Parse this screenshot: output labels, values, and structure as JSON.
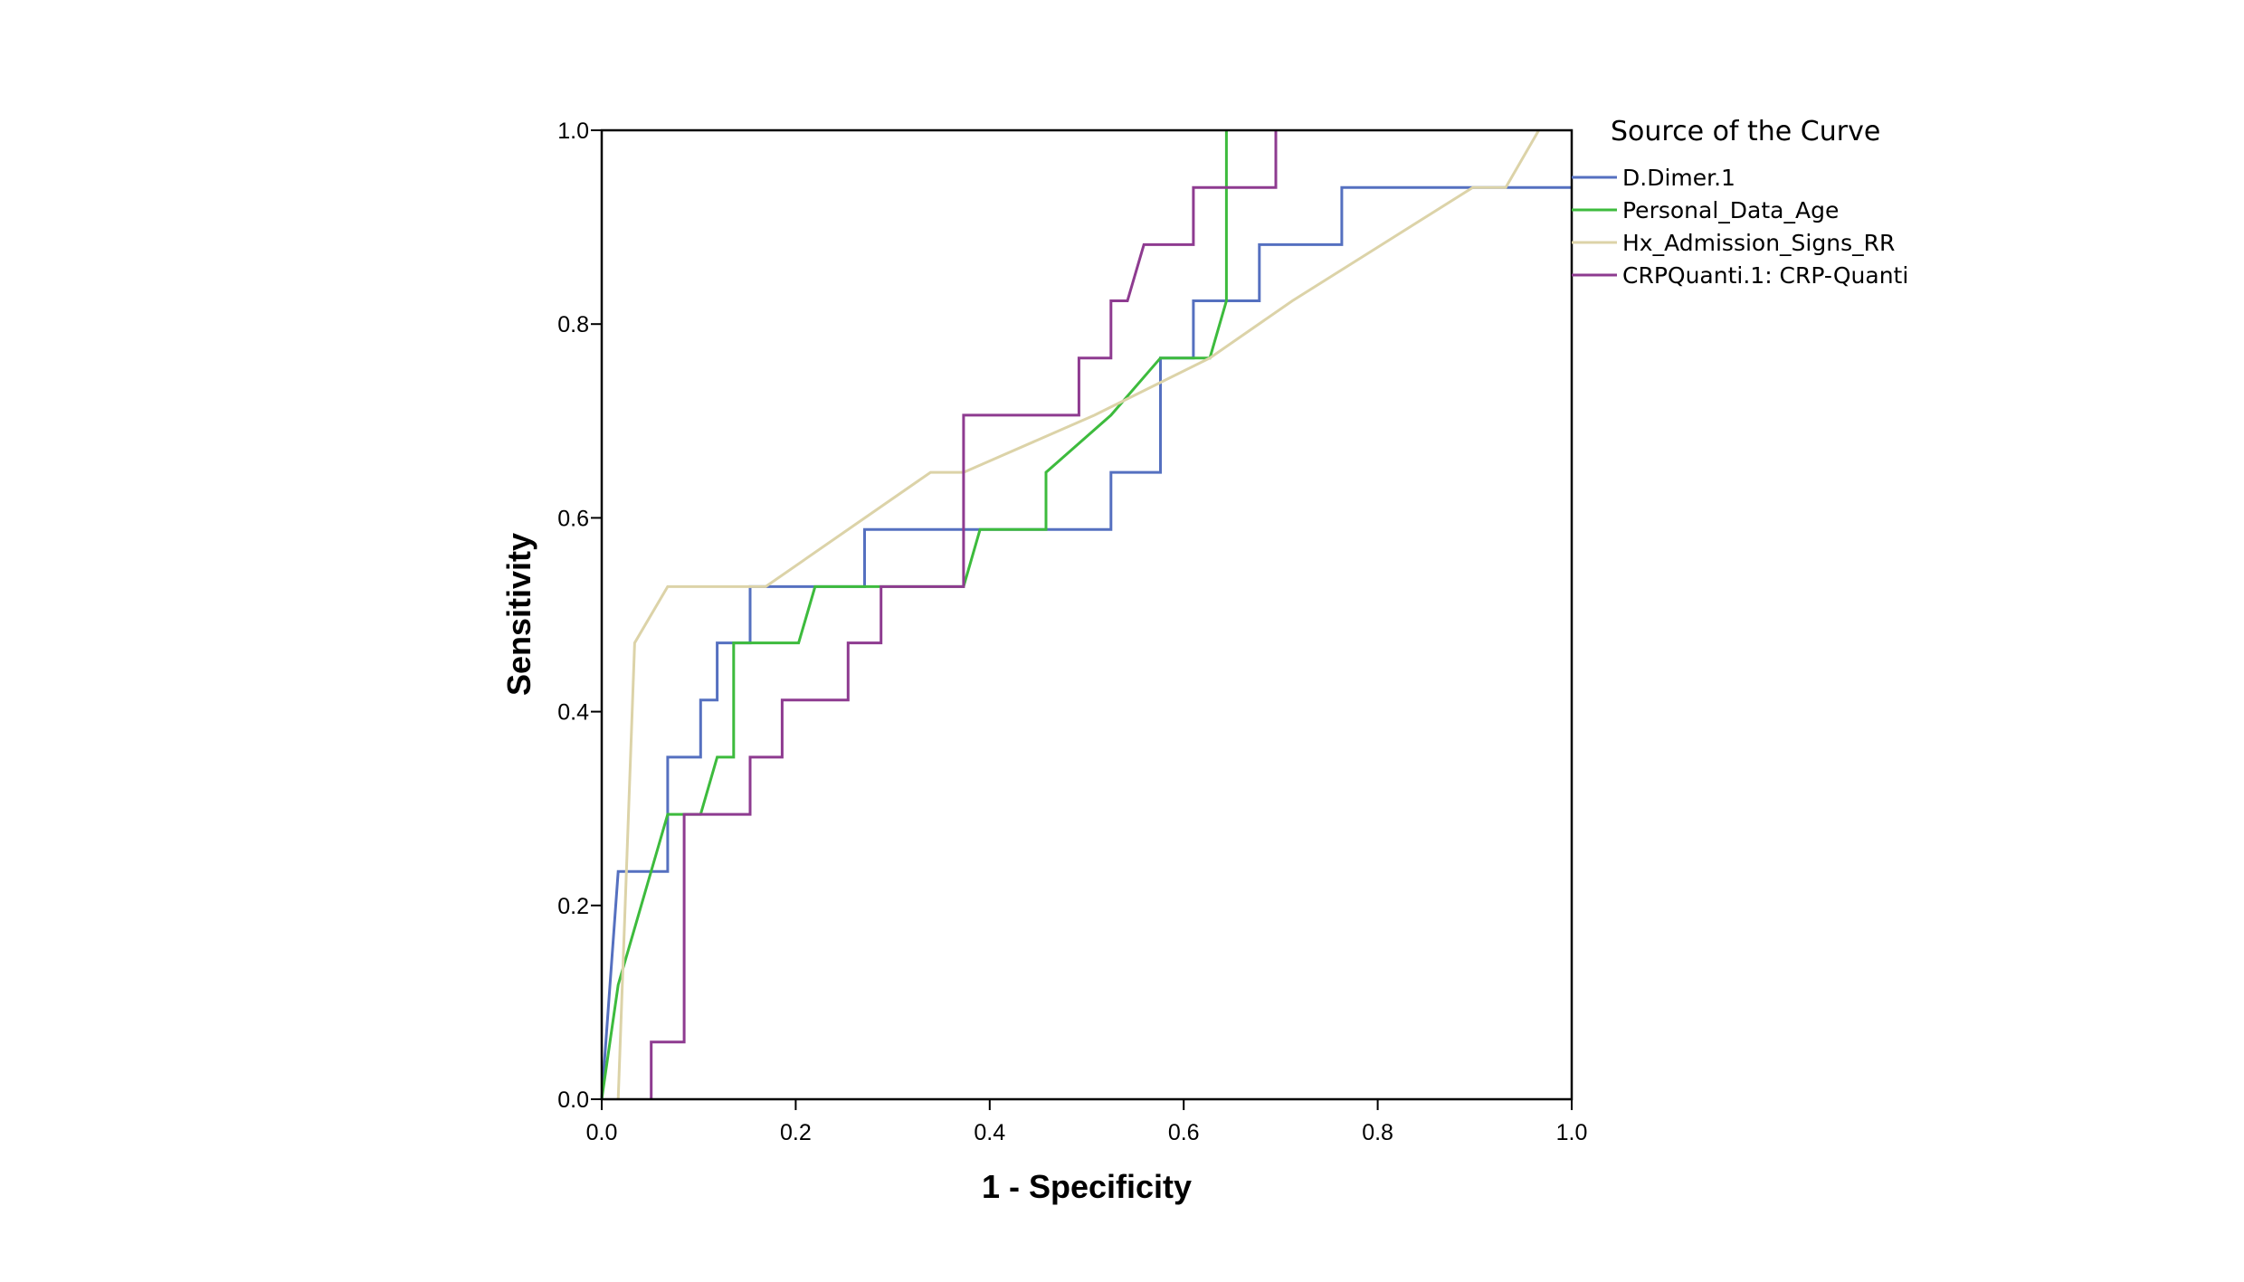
{
  "chart_data": {
    "type": "line",
    "title": "",
    "xlabel": "1 - Specificity",
    "ylabel": "Sensitivity",
    "xlim": [
      0,
      1
    ],
    "ylim": [
      0,
      1
    ],
    "xticks": [
      "0.0",
      "0.2",
      "0.4",
      "0.6",
      "0.8",
      "1.0"
    ],
    "yticks": [
      "0.0",
      "0.2",
      "0.4",
      "0.6",
      "0.8",
      "1.0"
    ],
    "grid": false,
    "legend": {
      "title": "Source of the Curve",
      "placement": "right"
    },
    "series": [
      {
        "name": "D.Dimer.1",
        "color": "#5570c0",
        "x": [
          0,
          0.017,
          0.017,
          0.068,
          0.068,
          0.102,
          0.102,
          0.119,
          0.119,
          0.153,
          0.153,
          0.271,
          0.271,
          0.525,
          0.525,
          0.576,
          0.576,
          0.61,
          0.61,
          0.678,
          0.678,
          0.763,
          0.763,
          1.0
        ],
        "y": [
          0,
          0.235,
          0.235,
          0.235,
          0.353,
          0.353,
          0.412,
          0.412,
          0.471,
          0.471,
          0.529,
          0.529,
          0.588,
          0.588,
          0.647,
          0.647,
          0.765,
          0.765,
          0.824,
          0.824,
          0.882,
          0.882,
          0.941,
          0.941
        ]
      },
      {
        "name": "Personal_Data_Age",
        "color": "#3dbb3d",
        "x": [
          0,
          0.017,
          0.068,
          0.102,
          0.119,
          0.136,
          0.136,
          0.203,
          0.22,
          0.373,
          0.39,
          0.458,
          0.458,
          0.525,
          0.576,
          0.627,
          0.644,
          0.644
        ],
        "y": [
          0,
          0.118,
          0.294,
          0.294,
          0.353,
          0.353,
          0.471,
          0.471,
          0.529,
          0.529,
          0.588,
          0.588,
          0.647,
          0.706,
          0.765,
          0.765,
          0.824,
          1.0
        ]
      },
      {
        "name": "Hx_Admission_Signs_RR",
        "color": "#dcd3a8",
        "x": [
          0.017,
          0.034,
          0.068,
          0.169,
          0.339,
          0.373,
          0.508,
          0.627,
          0.712,
          0.898,
          0.932,
          0.966
        ],
        "y": [
          0,
          0.471,
          0.529,
          0.529,
          0.647,
          0.647,
          0.706,
          0.765,
          0.824,
          0.941,
          0.941,
          1.0
        ]
      },
      {
        "name": "CRPQuanti.1: CRP-Quanti",
        "color": "#8e3b90",
        "x": [
          0.051,
          0.051,
          0.085,
          0.085,
          0.153,
          0.153,
          0.186,
          0.186,
          0.254,
          0.254,
          0.288,
          0.288,
          0.373,
          0.373,
          0.492,
          0.492,
          0.525,
          0.525,
          0.542,
          0.559,
          0.61,
          0.61,
          0.695,
          0.695
        ],
        "y": [
          0,
          0.059,
          0.059,
          0.294,
          0.294,
          0.353,
          0.353,
          0.412,
          0.412,
          0.471,
          0.471,
          0.529,
          0.529,
          0.706,
          0.706,
          0.765,
          0.765,
          0.824,
          0.824,
          0.882,
          0.882,
          0.941,
          0.941,
          1.0
        ]
      }
    ]
  }
}
